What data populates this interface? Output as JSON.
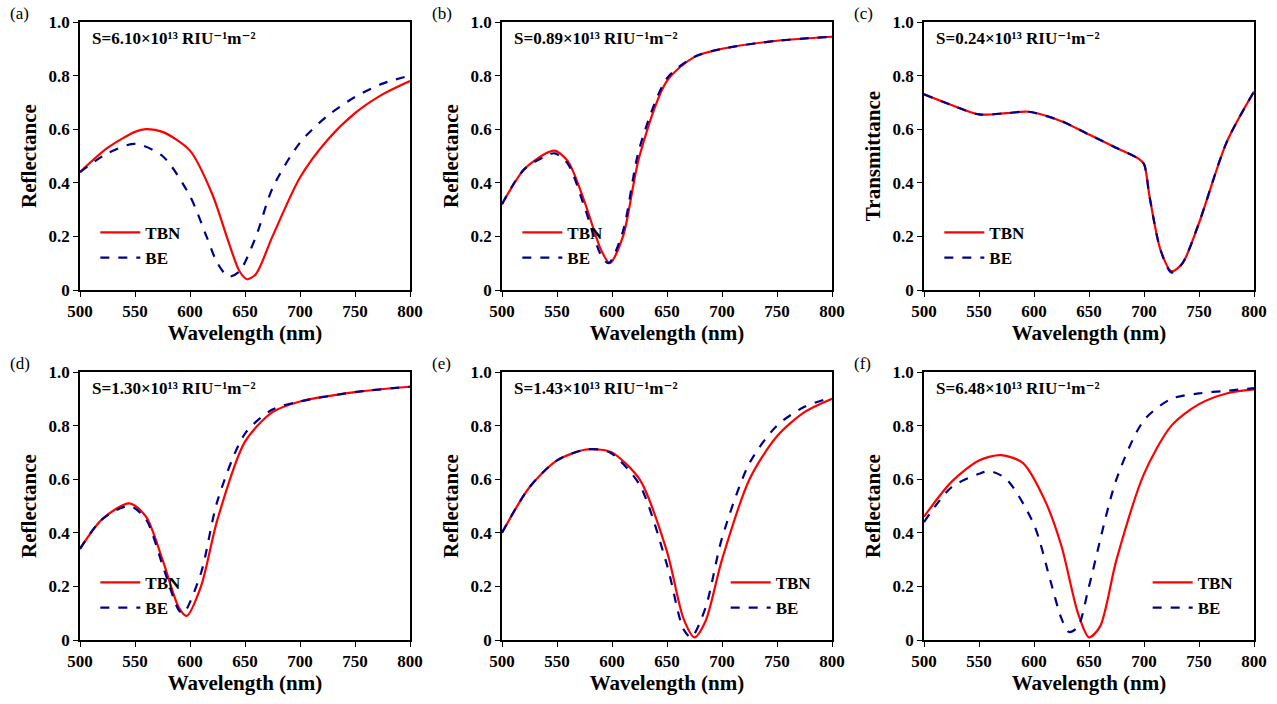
{
  "chart_data": [
    {
      "panel": "(a)",
      "type": "line",
      "annotation": "S=6.10×10¹³ RIU⁻¹m⁻²",
      "x_label": "Wavelength (nm)",
      "y_label": "Reflectance",
      "xlim": [
        500,
        800
      ],
      "xticks": [
        500,
        550,
        600,
        650,
        700,
        750,
        800
      ],
      "ylim": [
        0,
        1
      ],
      "yticks": [
        0,
        0.2,
        0.4,
        0.6,
        0.8,
        {
          "value": 1,
          "label": "1.0"
        }
      ],
      "grid": false,
      "legend": "lower left",
      "series": [
        {
          "name": "TBN",
          "color": "#ff0000",
          "line_style": "solid",
          "x": [
            500,
            525,
            550,
            560,
            575,
            600,
            620,
            635,
            645,
            652,
            660,
            675,
            700,
            725,
            750,
            775,
            800
          ],
          "values": [
            0.44,
            0.53,
            0.59,
            0.6,
            0.59,
            0.52,
            0.36,
            0.18,
            0.07,
            0.04,
            0.06,
            0.2,
            0.42,
            0.56,
            0.66,
            0.73,
            0.78
          ]
        },
        {
          "name": "BE",
          "color": "#00008b",
          "line_style": "dash",
          "x": [
            500,
            525,
            550,
            575,
            600,
            615,
            625,
            635,
            645,
            660,
            675,
            700,
            725,
            750,
            775,
            800
          ],
          "values": [
            0.44,
            0.51,
            0.545,
            0.5,
            0.35,
            0.2,
            0.1,
            0.05,
            0.07,
            0.2,
            0.38,
            0.55,
            0.65,
            0.72,
            0.77,
            0.8
          ]
        }
      ]
    },
    {
      "panel": "(b)",
      "type": "line",
      "annotation": "S=0.89×10¹³ RIU⁻¹m⁻²",
      "x_label": "Wavelength (nm)",
      "y_label": "Reflectance",
      "xlim": [
        500,
        800
      ],
      "xticks": [
        500,
        550,
        600,
        650,
        700,
        750,
        800
      ],
      "ylim": [
        0,
        1
      ],
      "yticks": [
        0,
        0.2,
        0.4,
        0.6,
        0.8,
        {
          "value": 1,
          "label": "1.0"
        }
      ],
      "grid": false,
      "legend": "lower left",
      "series": [
        {
          "name": "TBN",
          "color": "#ff0000",
          "line_style": "solid",
          "x": [
            500,
            520,
            540,
            548,
            560,
            575,
            590,
            598,
            610,
            625,
            650,
            675,
            700,
            750,
            800
          ],
          "values": [
            0.32,
            0.45,
            0.51,
            0.52,
            0.48,
            0.33,
            0.15,
            0.1,
            0.2,
            0.5,
            0.78,
            0.87,
            0.9,
            0.93,
            0.945
          ]
        },
        {
          "name": "BE",
          "color": "#00008b",
          "line_style": "dash",
          "x": [
            500,
            520,
            540,
            548,
            560,
            575,
            590,
            597,
            610,
            625,
            650,
            675,
            700,
            750,
            800
          ],
          "values": [
            0.32,
            0.45,
            0.5,
            0.51,
            0.47,
            0.31,
            0.13,
            0.1,
            0.22,
            0.53,
            0.79,
            0.87,
            0.9,
            0.93,
            0.945
          ]
        }
      ]
    },
    {
      "panel": "(c)",
      "type": "line",
      "annotation": "S=0.24×10¹³ RIU⁻¹m⁻²",
      "x_label": "Wavelength (nm)",
      "y_label": "Transmittance",
      "xlim": [
        500,
        800
      ],
      "xticks": [
        500,
        550,
        600,
        650,
        700,
        750,
        800
      ],
      "ylim": [
        0,
        1
      ],
      "yticks": [
        0,
        0.2,
        0.4,
        0.6,
        0.8,
        {
          "value": 1,
          "label": "1.0"
        }
      ],
      "grid": false,
      "legend": "lower left",
      "series": [
        {
          "name": "TBN",
          "color": "#ff0000",
          "line_style": "solid",
          "x": [
            500,
            525,
            550,
            575,
            595,
            625,
            650,
            675,
            695,
            700,
            705,
            715,
            725,
            735,
            750,
            775,
            800
          ],
          "values": [
            0.73,
            0.69,
            0.655,
            0.66,
            0.665,
            0.63,
            0.58,
            0.53,
            0.49,
            0.47,
            0.35,
            0.15,
            0.07,
            0.1,
            0.25,
            0.55,
            0.74
          ]
        },
        {
          "name": "BE",
          "color": "#00008b",
          "line_style": "dash",
          "x": [
            500,
            525,
            550,
            575,
            595,
            625,
            650,
            675,
            695,
            700,
            705,
            715,
            725,
            735,
            750,
            775,
            800
          ],
          "values": [
            0.73,
            0.69,
            0.655,
            0.66,
            0.665,
            0.63,
            0.58,
            0.53,
            0.49,
            0.47,
            0.35,
            0.15,
            0.065,
            0.1,
            0.25,
            0.55,
            0.74
          ]
        }
      ]
    },
    {
      "panel": "(d)",
      "type": "line",
      "annotation": "S=1.30×10¹³ RIU⁻¹m⁻²",
      "x_label": "Wavelength (nm)",
      "y_label": "Reflectance",
      "xlim": [
        500,
        800
      ],
      "xticks": [
        500,
        550,
        600,
        650,
        700,
        750,
        800
      ],
      "ylim": [
        0,
        1
      ],
      "yticks": [
        0,
        0.2,
        0.4,
        0.6,
        0.8,
        {
          "value": 1,
          "label": "1.0"
        }
      ],
      "grid": false,
      "legend": "lower left",
      "series": [
        {
          "name": "TBN",
          "color": "#ff0000",
          "line_style": "solid",
          "x": [
            500,
            520,
            545,
            560,
            575,
            590,
            597,
            610,
            625,
            650,
            675,
            700,
            750,
            800
          ],
          "values": [
            0.34,
            0.45,
            0.51,
            0.46,
            0.3,
            0.12,
            0.09,
            0.2,
            0.45,
            0.74,
            0.85,
            0.89,
            0.925,
            0.945
          ]
        },
        {
          "name": "BE",
          "color": "#00008b",
          "line_style": "dash",
          "x": [
            500,
            520,
            545,
            560,
            575,
            590,
            594,
            610,
            625,
            650,
            675,
            700,
            750,
            800
          ],
          "values": [
            0.34,
            0.45,
            0.5,
            0.45,
            0.28,
            0.11,
            0.1,
            0.25,
            0.52,
            0.77,
            0.86,
            0.89,
            0.925,
            0.945
          ]
        }
      ]
    },
    {
      "panel": "(e)",
      "type": "line",
      "annotation": "S=1.43×10¹³ RIU⁻¹m⁻²",
      "x_label": "Wavelength (nm)",
      "y_label": "Reflectance",
      "xlim": [
        500,
        800
      ],
      "xticks": [
        500,
        550,
        600,
        650,
        700,
        750,
        800
      ],
      "ylim": [
        0,
        1
      ],
      "yticks": [
        0,
        0.2,
        0.4,
        0.6,
        0.8,
        {
          "value": 1,
          "label": "1.0"
        }
      ],
      "grid": false,
      "legend": "lower right",
      "series": [
        {
          "name": "TBN",
          "color": "#ff0000",
          "line_style": "solid",
          "x": [
            500,
            525,
            550,
            575,
            590,
            600,
            625,
            650,
            665,
            675,
            685,
            700,
            725,
            750,
            775,
            800
          ],
          "values": [
            0.4,
            0.57,
            0.67,
            0.71,
            0.71,
            0.7,
            0.6,
            0.33,
            0.08,
            0.01,
            0.07,
            0.3,
            0.6,
            0.76,
            0.85,
            0.9
          ]
        },
        {
          "name": "BE",
          "color": "#00008b",
          "line_style": "dash",
          "x": [
            500,
            525,
            550,
            575,
            590,
            600,
            625,
            650,
            665,
            672,
            685,
            700,
            725,
            750,
            775,
            800
          ],
          "values": [
            0.4,
            0.57,
            0.67,
            0.71,
            0.71,
            0.695,
            0.58,
            0.28,
            0.04,
            0.01,
            0.12,
            0.38,
            0.66,
            0.8,
            0.87,
            0.905
          ]
        }
      ]
    },
    {
      "panel": "(f)",
      "type": "line",
      "annotation": "S=6.48×10¹³ RIU⁻¹m⁻²",
      "x_label": "Wavelength (nm)",
      "y_label": "Reflectance",
      "xlim": [
        500,
        800
      ],
      "xticks": [
        500,
        550,
        600,
        650,
        700,
        750,
        800
      ],
      "ylim": [
        0,
        1
      ],
      "yticks": [
        0,
        0.2,
        0.4,
        0.6,
        0.8,
        {
          "value": 1,
          "label": "1.0"
        }
      ],
      "grid": false,
      "legend": "lower right",
      "series": [
        {
          "name": "TBN",
          "color": "#ff0000",
          "line_style": "solid",
          "x": [
            500,
            525,
            550,
            570,
            590,
            610,
            625,
            640,
            650,
            660,
            675,
            700,
            725,
            750,
            775,
            800
          ],
          "values": [
            0.46,
            0.59,
            0.67,
            0.69,
            0.66,
            0.52,
            0.35,
            0.1,
            0.01,
            0.05,
            0.3,
            0.62,
            0.8,
            0.88,
            0.92,
            0.935
          ]
        },
        {
          "name": "BE",
          "color": "#00008b",
          "line_style": "dash",
          "x": [
            500,
            525,
            550,
            560,
            575,
            600,
            615,
            625,
            632,
            640,
            650,
            675,
            700,
            725,
            750,
            775,
            800
          ],
          "values": [
            0.44,
            0.57,
            0.62,
            0.63,
            0.6,
            0.43,
            0.22,
            0.08,
            0.03,
            0.05,
            0.2,
            0.6,
            0.82,
            0.9,
            0.92,
            0.93,
            0.94
          ]
        }
      ]
    }
  ]
}
